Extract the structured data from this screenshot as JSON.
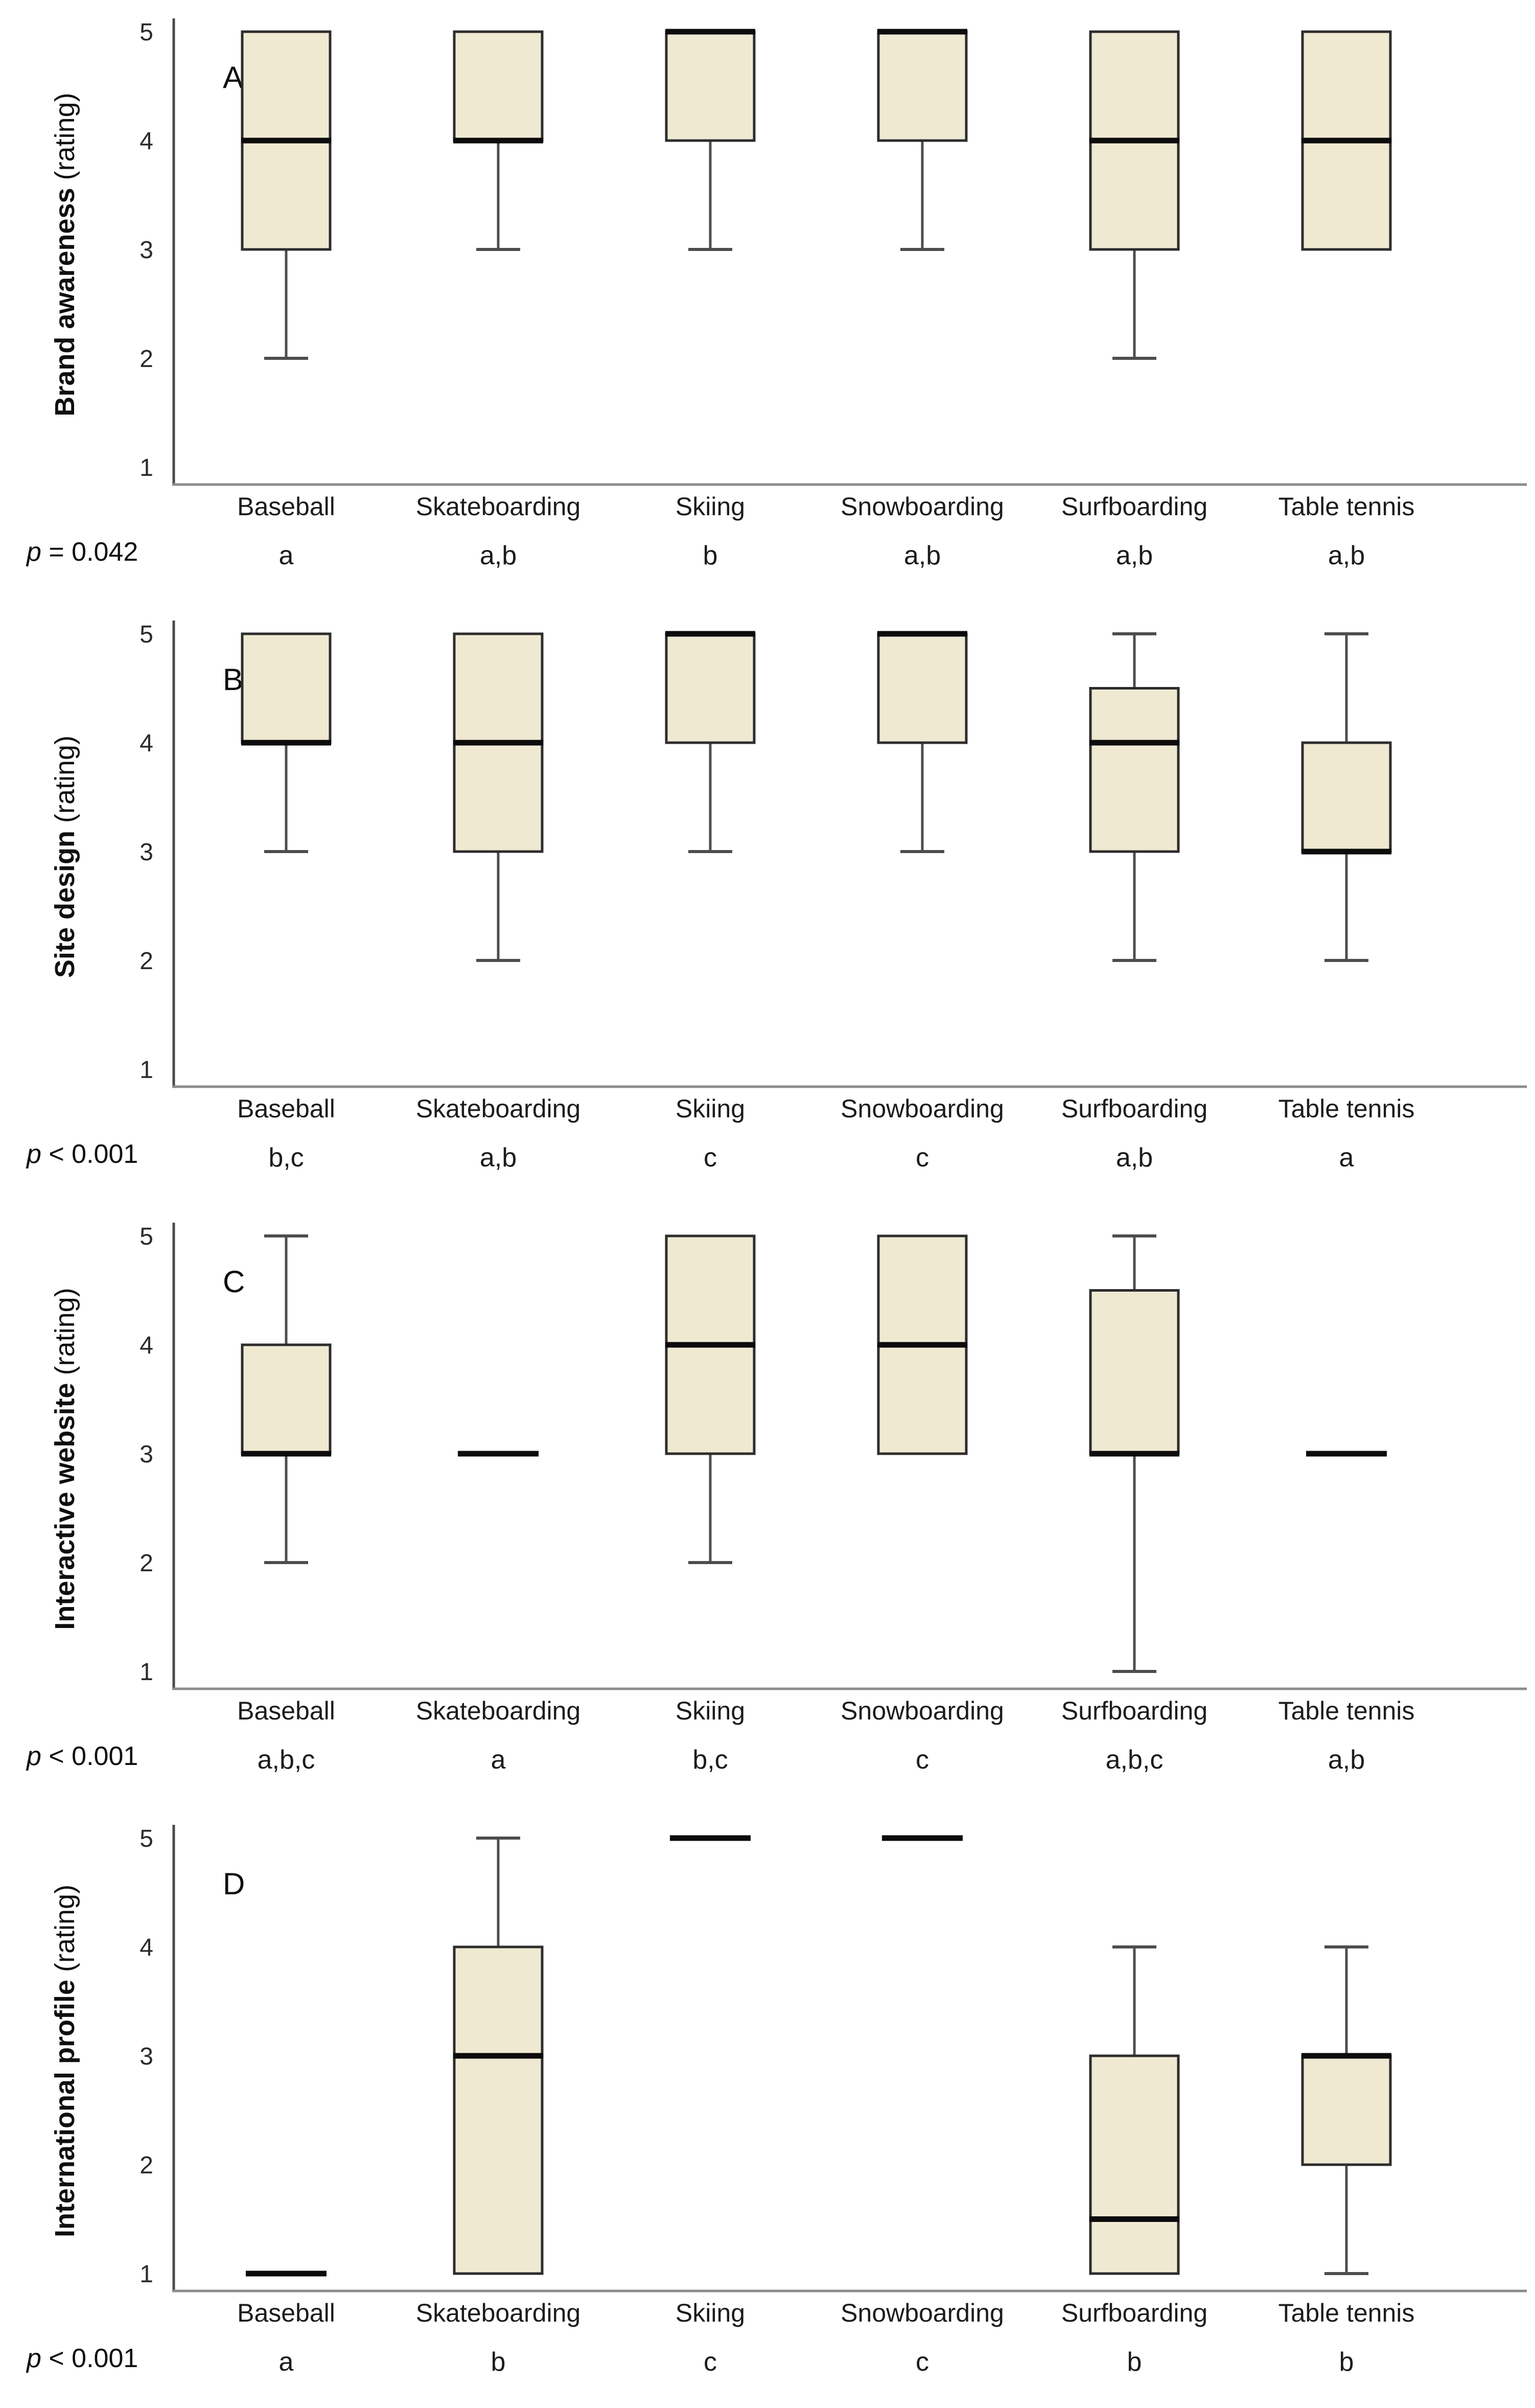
{
  "categories": [
    "Baseball",
    "Skateboarding",
    "Skiing",
    "Snowboarding",
    "Surfboarding",
    "Table tennis"
  ],
  "y_ticks": [
    5,
    4,
    3,
    2,
    1
  ],
  "colors": {
    "box_fill": "#f0e9d2",
    "box_border": "#2d2d2d",
    "median": "#0c0c0c",
    "whisker": "#4d4d4d",
    "axis": "#4a4a4a",
    "baseline": "#8c8c8c",
    "text": "#1c1c1c"
  },
  "chart_data": [
    {
      "type": "box",
      "panel_letter": "A",
      "ylabel_bold": "Brand awareness",
      "ylabel_unit": " (rating)",
      "p_symbol": "p",
      "p_rest": " = 0.042",
      "ylim": [
        1,
        5
      ],
      "categories": [
        "Baseball",
        "Skateboarding",
        "Skiing",
        "Snowboarding",
        "Surfboarding",
        "Table tennis"
      ],
      "series": [
        {
          "name": "Baseball",
          "whislo": 2,
          "q1": 3,
          "med": 4,
          "q3": 5,
          "whishi": 5,
          "sig": "a"
        },
        {
          "name": "Skateboarding",
          "whislo": 3,
          "q1": 4,
          "med": 4,
          "q3": 5,
          "whishi": 5,
          "sig": "a,b"
        },
        {
          "name": "Skiing",
          "whislo": 3,
          "q1": 4,
          "med": 5,
          "q3": 5,
          "whishi": 5,
          "sig": "b"
        },
        {
          "name": "Snowboarding",
          "whislo": 3,
          "q1": 4,
          "med": 5,
          "q3": 5,
          "whishi": 5,
          "sig": "a,b"
        },
        {
          "name": "Surfboarding",
          "whislo": 2,
          "q1": 3,
          "med": 4,
          "q3": 5,
          "whishi": 5,
          "sig": "a,b"
        },
        {
          "name": "Table tennis",
          "whislo": 3,
          "q1": 3,
          "med": 4,
          "q3": 5,
          "whishi": 5,
          "sig": "a,b"
        }
      ]
    },
    {
      "type": "box",
      "panel_letter": "B",
      "ylabel_bold": "Site design",
      "ylabel_unit": " (rating)",
      "p_symbol": "p",
      "p_rest": " < 0.001",
      "ylim": [
        1,
        5
      ],
      "categories": [
        "Baseball",
        "Skateboarding",
        "Skiing",
        "Snowboarding",
        "Surfboarding",
        "Table tennis"
      ],
      "series": [
        {
          "name": "Baseball",
          "whislo": 3,
          "q1": 4,
          "med": 4,
          "q3": 5,
          "whishi": 5,
          "sig": "b,c"
        },
        {
          "name": "Skateboarding",
          "whislo": 2,
          "q1": 3,
          "med": 4,
          "q3": 5,
          "whishi": 5,
          "sig": "a,b"
        },
        {
          "name": "Skiing",
          "whislo": 3,
          "q1": 4,
          "med": 5,
          "q3": 5,
          "whishi": 5,
          "sig": "c"
        },
        {
          "name": "Snowboarding",
          "whislo": 3,
          "q1": 4,
          "med": 5,
          "q3": 5,
          "whishi": 5,
          "sig": "c"
        },
        {
          "name": "Surfboarding",
          "whislo": 2,
          "q1": 3,
          "med": 4,
          "q3": 4.5,
          "whishi": 5,
          "sig": "a,b"
        },
        {
          "name": "Table tennis",
          "whislo": 2,
          "q1": 3,
          "med": 3,
          "q3": 4,
          "whishi": 5,
          "sig": "a"
        }
      ]
    },
    {
      "type": "box",
      "panel_letter": "C",
      "ylabel_bold": "Interactive website",
      "ylabel_unit": " (rating)",
      "p_symbol": "p",
      "p_rest": " < 0.001",
      "ylim": [
        1,
        5
      ],
      "categories": [
        "Baseball",
        "Skateboarding",
        "Skiing",
        "Snowboarding",
        "Surfboarding",
        "Table tennis"
      ],
      "series": [
        {
          "name": "Baseball",
          "whislo": 2,
          "q1": 3,
          "med": 3,
          "q3": 4,
          "whishi": 5,
          "sig": "a,b,c"
        },
        {
          "name": "Skateboarding",
          "whislo": 3,
          "q1": 3,
          "med": 3,
          "q3": 3,
          "whishi": 3,
          "sig": "a"
        },
        {
          "name": "Skiing",
          "whislo": 2,
          "q1": 3,
          "med": 4,
          "q3": 5,
          "whishi": 5,
          "sig": "b,c"
        },
        {
          "name": "Snowboarding",
          "whislo": 3,
          "q1": 3,
          "med": 4,
          "q3": 5,
          "whishi": 5,
          "sig": "c"
        },
        {
          "name": "Surfboarding",
          "whislo": 1,
          "q1": 3,
          "med": 3,
          "q3": 4.5,
          "whishi": 5,
          "sig": "a,b,c"
        },
        {
          "name": "Table tennis",
          "whislo": 3,
          "q1": 3,
          "med": 3,
          "q3": 3,
          "whishi": 3,
          "sig": "a,b"
        }
      ]
    },
    {
      "type": "box",
      "panel_letter": "D",
      "ylabel_bold": "International profile",
      "ylabel_unit": " (rating)",
      "p_symbol": "p",
      "p_rest": " < 0.001",
      "ylim": [
        1,
        5
      ],
      "categories": [
        "Baseball",
        "Skateboarding",
        "Skiing",
        "Snowboarding",
        "Surfboarding",
        "Table tennis"
      ],
      "series": [
        {
          "name": "Baseball",
          "whislo": 1,
          "q1": 1,
          "med": 1,
          "q3": 1,
          "whishi": 1,
          "sig": "a"
        },
        {
          "name": "Skateboarding",
          "whislo": 1,
          "q1": 1,
          "med": 3,
          "q3": 4,
          "whishi": 5,
          "sig": "b"
        },
        {
          "name": "Skiing",
          "whislo": 5,
          "q1": 5,
          "med": 5,
          "q3": 5,
          "whishi": 5,
          "sig": "c"
        },
        {
          "name": "Snowboarding",
          "whislo": 5,
          "q1": 5,
          "med": 5,
          "q3": 5,
          "whishi": 5,
          "sig": "c"
        },
        {
          "name": "Surfboarding",
          "whislo": 1,
          "q1": 1,
          "med": 1.5,
          "q3": 3,
          "whishi": 4,
          "sig": "b"
        },
        {
          "name": "Table tennis",
          "whislo": 1,
          "q1": 2,
          "med": 3,
          "q3": 3,
          "whishi": 4,
          "sig": "b"
        }
      ]
    }
  ]
}
